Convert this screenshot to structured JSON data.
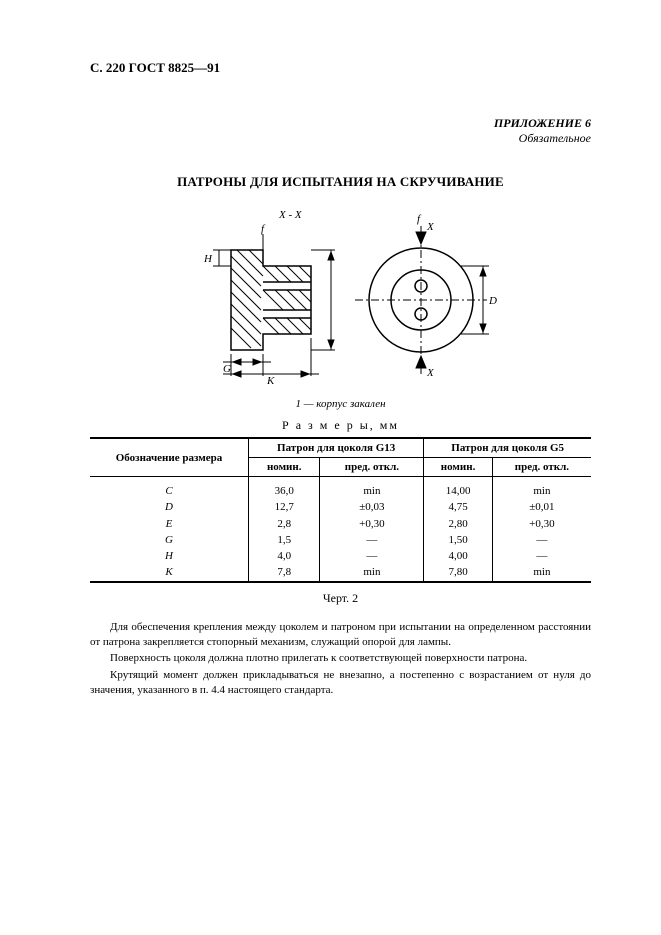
{
  "header_ref": "С. 220 ГОСТ 8825—91",
  "appendix": {
    "title": "ПРИЛОЖЕНИЕ 6",
    "subtitle": "Обязательное"
  },
  "section_title": "ПАТРОНЫ ДЛЯ ИСПЫТАНИЯ НА СКРУЧИВАНИЕ",
  "figure": {
    "section_mark": "X - X",
    "f_label": "f",
    "x_label": "X",
    "D_label": "D",
    "G_label": "G",
    "K_label": "K",
    "H_label": "H",
    "caption": "1 — корпус закален"
  },
  "table": {
    "title": "Р а з м е р ы, мм",
    "header": {
      "col0": "Обозначение размера",
      "group1": "Патрон для цоколя G13",
      "group2": "Патрон для цоколя G5",
      "nom": "номин.",
      "tol": "пред. откл."
    },
    "rows": [
      {
        "label": "C",
        "g13_nom": "36,0",
        "g13_tol": "min",
        "g5_nom": "14,00",
        "g5_tol": "min"
      },
      {
        "label": "D",
        "g13_nom": "12,7",
        "g13_tol": "±0,03",
        "g5_nom": "4,75",
        "g5_tol": "±0,01"
      },
      {
        "label": "E",
        "g13_nom": "2,8",
        "g13_tol": "+0,30",
        "g5_nom": "2,80",
        "g5_tol": "+0,30"
      },
      {
        "label": "G",
        "g13_nom": "1,5",
        "g13_tol": "—",
        "g5_nom": "1,50",
        "g5_tol": "—"
      },
      {
        "label": "H",
        "g13_nom": "4,0",
        "g13_tol": "—",
        "g5_nom": "4,00",
        "g5_tol": "—"
      },
      {
        "label": "K",
        "g13_nom": "7,8",
        "g13_tol": "min",
        "g5_nom": "7,80",
        "g5_tol": "min"
      }
    ],
    "fig_number": "Черт. 2"
  },
  "paragraphs": [
    "Для обеспечения крепления между цоколем и патроном при испытании на определенном расстоянии от патрона закрепляется стопорный механизм, служащий опорой для лампы.",
    "Поверхность цоколя должна плотно прилегать к соответствующей поверхности патрона.",
    "Крутящий момент должен прикладываться не внезапно, а постепенно с возрастанием от нуля до значения, указанного в п. 4.4 настоящего стандарта."
  ],
  "colors": {
    "text": "#000000",
    "bg": "#ffffff"
  }
}
